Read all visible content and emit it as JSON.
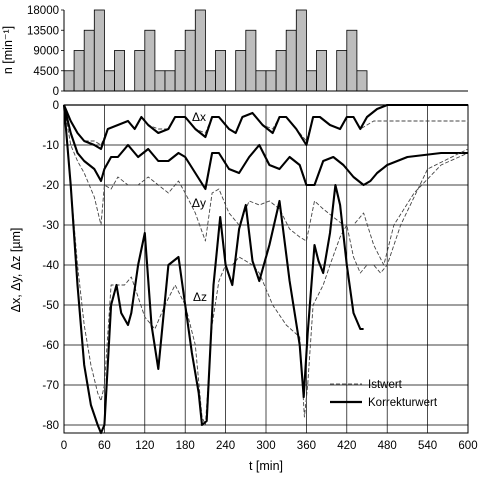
{
  "chart_data": [
    {
      "type": "bar",
      "ylabel": "n  [min⁻¹]",
      "yticks": [
        "0",
        "4500",
        "9000",
        "13500",
        "18000"
      ],
      "ylim": [
        0,
        18000
      ],
      "xlim": [
        0,
        600
      ],
      "bar_color": "#bdbdbd",
      "bars": [
        {
          "x": 0,
          "value": 4500
        },
        {
          "x": 15,
          "value": 9000
        },
        {
          "x": 30,
          "value": 13500
        },
        {
          "x": 45,
          "value": 18000
        },
        {
          "x": 60,
          "value": 4500
        },
        {
          "x": 75,
          "value": 9000
        },
        {
          "x": 105,
          "value": 9000
        },
        {
          "x": 120,
          "value": 13500
        },
        {
          "x": 135,
          "value": 4500
        },
        {
          "x": 150,
          "value": 4500
        },
        {
          "x": 165,
          "value": 9000
        },
        {
          "x": 180,
          "value": 13500
        },
        {
          "x": 195,
          "value": 18000
        },
        {
          "x": 210,
          "value": 4500
        },
        {
          "x": 225,
          "value": 9000
        },
        {
          "x": 255,
          "value": 9000
        },
        {
          "x": 270,
          "value": 13500
        },
        {
          "x": 285,
          "value": 4500
        },
        {
          "x": 300,
          "value": 4500
        },
        {
          "x": 315,
          "value": 9000
        },
        {
          "x": 330,
          "value": 13500
        },
        {
          "x": 345,
          "value": 18000
        },
        {
          "x": 360,
          "value": 4500
        },
        {
          "x": 375,
          "value": 9000
        },
        {
          "x": 405,
          "value": 9000
        },
        {
          "x": 420,
          "value": 13500
        },
        {
          "x": 435,
          "value": 4500
        }
      ]
    },
    {
      "type": "line",
      "xlabel": "t  [min]",
      "ylabel": "Δx, Δy, Δz  [µm]",
      "xticks": [
        "0",
        "60",
        "120",
        "180",
        "240",
        "300",
        "360",
        "420",
        "480",
        "540",
        "600"
      ],
      "yticks": [
        "0",
        "-10",
        "-20",
        "-30",
        "-40",
        "-50",
        "-60",
        "-70",
        "-80"
      ],
      "xlim": [
        0,
        600
      ],
      "ylim": [
        -82,
        0
      ],
      "grid": true,
      "legend": {
        "position": "bottom-right",
        "entries": [
          "Istwert",
          "Korrekturwert"
        ]
      },
      "annotations": [
        "Δx",
        "Δy",
        "Δz"
      ],
      "series": [
        {
          "name": "Istwert",
          "axis": "x",
          "style": "dashed",
          "x": [
            0,
            10,
            20,
            30,
            45,
            55,
            65,
            80,
            95,
            105,
            115,
            125,
            140,
            155,
            165,
            180,
            195,
            210,
            220,
            230,
            245,
            255,
            265,
            280,
            295,
            310,
            320,
            330,
            345,
            360,
            370,
            380,
            395,
            410,
            420,
            430,
            440,
            450,
            460,
            480,
            540,
            600
          ],
          "y": [
            0,
            -4,
            -7,
            -9,
            -9,
            -10,
            -6,
            -5,
            -4,
            -6,
            -3,
            -5,
            -6,
            -6,
            -3,
            -3,
            -6,
            -7,
            -3,
            -3,
            -6,
            -7,
            -3,
            -2,
            -5,
            -6,
            -3,
            -3,
            -6,
            -9,
            -3,
            -3,
            -5,
            -6,
            -3,
            -3,
            -6,
            -5,
            -4,
            -4,
            -4,
            -4
          ]
        },
        {
          "name": "Korrekturwert",
          "axis": "x",
          "style": "solid",
          "x": [
            0,
            10,
            20,
            30,
            45,
            55,
            65,
            80,
            95,
            105,
            115,
            125,
            140,
            155,
            165,
            180,
            195,
            210,
            220,
            230,
            245,
            255,
            265,
            280,
            295,
            310,
            320,
            330,
            345,
            360,
            370,
            380,
            395,
            410,
            420,
            430,
            440,
            450,
            465,
            480,
            540,
            600
          ],
          "y": [
            0,
            -4,
            -7,
            -9,
            -10,
            -11,
            -6,
            -5,
            -4,
            -6,
            -3,
            -5,
            -7,
            -6,
            -3,
            -3,
            -6,
            -8,
            -3,
            -3,
            -6,
            -7,
            -3,
            -2,
            -5,
            -7,
            -3,
            -3,
            -6,
            -10,
            -3,
            -3,
            -5,
            -6,
            -3,
            -3,
            -6,
            -3,
            -1,
            0,
            0,
            0
          ]
        },
        {
          "name": "Istwert",
          "axis": "y",
          "style": "dashed",
          "x": [
            0,
            10,
            20,
            30,
            45,
            55,
            60,
            70,
            80,
            95,
            110,
            125,
            140,
            155,
            170,
            180,
            195,
            210,
            220,
            230,
            245,
            260,
            275,
            290,
            305,
            320,
            335,
            350,
            360,
            372,
            385,
            400,
            415,
            430,
            445,
            460,
            475,
            490,
            520,
            560,
            600
          ],
          "y": [
            0,
            -10,
            -14,
            -17,
            -23,
            -30,
            -20,
            -21,
            -18,
            -20,
            -20,
            -18,
            -20,
            -22,
            -19,
            -22,
            -27,
            -34,
            -22,
            -21,
            -27,
            -30,
            -24,
            -25,
            -24,
            -26,
            -31,
            -33,
            -34,
            -24,
            -26,
            -28,
            -30,
            -30,
            -27,
            -35,
            -40,
            -30,
            -22,
            -15,
            -12
          ]
        },
        {
          "name": "Korrekturwert",
          "axis": "y",
          "style": "solid",
          "x": [
            0,
            10,
            20,
            30,
            45,
            55,
            60,
            70,
            80,
            95,
            110,
            125,
            140,
            155,
            170,
            180,
            195,
            210,
            220,
            230,
            245,
            260,
            275,
            290,
            305,
            320,
            335,
            350,
            360,
            372,
            385,
            400,
            415,
            430,
            445,
            455,
            465,
            480,
            510,
            560,
            600
          ],
          "y": [
            0,
            -7,
            -12,
            -14,
            -16,
            -19,
            -16,
            -13,
            -13,
            -10,
            -13,
            -11,
            -14,
            -14,
            -12,
            -13,
            -17,
            -21,
            -12,
            -12,
            -16,
            -17,
            -13,
            -10,
            -15,
            -16,
            -13,
            -15,
            -20,
            -20,
            -14,
            -13,
            -15,
            -18,
            -20,
            -19,
            -17,
            -15,
            -13,
            -12,
            -12
          ]
        },
        {
          "name": "Istwert",
          "axis": "z",
          "style": "dashed",
          "x": [
            0,
            10,
            20,
            30,
            40,
            50,
            55,
            60,
            70,
            80,
            90,
            100,
            110,
            120,
            135,
            150,
            165,
            180,
            195,
            205,
            210,
            220,
            230,
            240,
            250,
            260,
            270,
            280,
            290,
            310,
            330,
            350,
            357,
            362,
            370,
            385,
            395,
            410,
            420,
            430,
            440,
            450,
            460,
            470,
            480,
            500,
            540,
            600
          ],
          "y": [
            0,
            -20,
            -40,
            -55,
            -65,
            -72,
            -74,
            -70,
            -45,
            -45,
            -45,
            -43,
            -48,
            -53,
            -56,
            -50,
            -45,
            -50,
            -60,
            -78,
            -80,
            -55,
            -44,
            -40,
            -40,
            -38,
            -39,
            -40,
            -42,
            -50,
            -55,
            -58,
            -78,
            -70,
            -50,
            -45,
            -40,
            -33,
            -30,
            -38,
            -42,
            -40,
            -40,
            -42,
            -40,
            -30,
            -16,
            -11
          ]
        },
        {
          "name": "Korrekturwert",
          "axis": "z",
          "style": "solid",
          "x": [
            0,
            10,
            20,
            30,
            40,
            50,
            55,
            60,
            70,
            78,
            85,
            95,
            100,
            110,
            120,
            130,
            140,
            155,
            170,
            180,
            190,
            200,
            205,
            212,
            222,
            232,
            240,
            250,
            260,
            270,
            280,
            290,
            305,
            320,
            335,
            350,
            356,
            362,
            372,
            378,
            385,
            395,
            403,
            410,
            420,
            430,
            440,
            445
          ],
          "y": [
            0,
            -20,
            -45,
            -65,
            -75,
            -80,
            -82,
            -80,
            -50,
            -45,
            -52,
            -55,
            -52,
            -40,
            -32,
            -55,
            -66,
            -40,
            -38,
            -50,
            -62,
            -72,
            -80,
            -79,
            -45,
            -28,
            -40,
            -45,
            -31,
            -25,
            -39,
            -44,
            -35,
            -24,
            -44,
            -60,
            -73,
            -57,
            -35,
            -39,
            -42,
            -32,
            -20,
            -25,
            -40,
            -52,
            -56,
            -56
          ]
        }
      ]
    }
  ]
}
